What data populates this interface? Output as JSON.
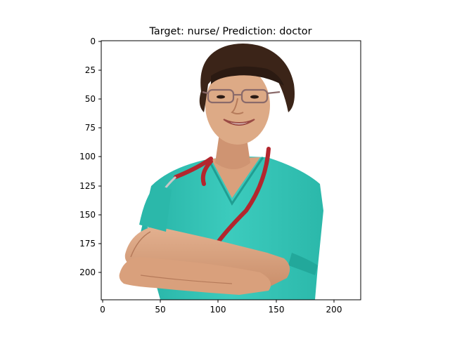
{
  "figure": {
    "title": "Target: nurse/ Prediction: doctor",
    "image_subject": "woman in teal scrubs with stethoscope, arms crossed",
    "x_ticks": [
      "0",
      "50",
      "100",
      "150",
      "200"
    ],
    "y_ticks": [
      "0",
      "25",
      "50",
      "75",
      "100",
      "125",
      "150",
      "175",
      "200"
    ],
    "x_range": [
      0,
      224
    ],
    "y_range": [
      224,
      0
    ]
  },
  "colors": {
    "scrubs": "#2ec4b6",
    "skin": "#d9a07c",
    "hair": "#3b2418",
    "stethoscope": "#b3262e"
  }
}
